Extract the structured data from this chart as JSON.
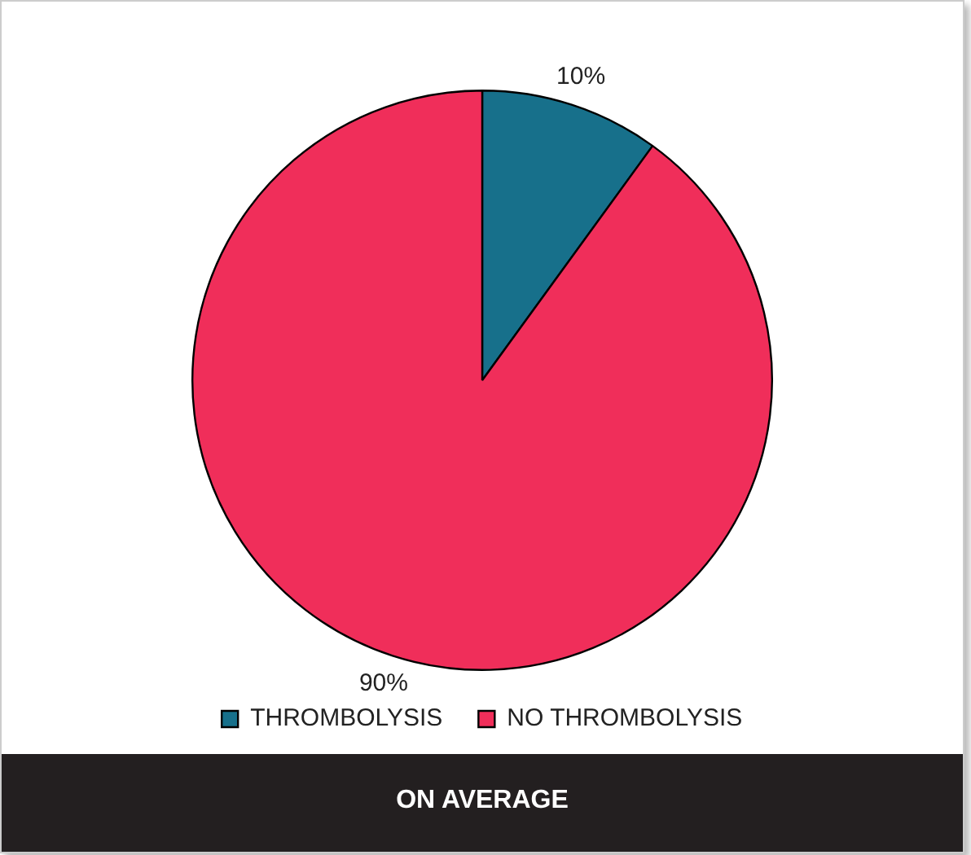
{
  "chart_data": {
    "type": "pie",
    "categories": [
      "THROMBOLYSIS",
      "NO THROMBOLYSIS"
    ],
    "values": [
      10,
      90
    ],
    "colors": [
      "#17708b",
      "#f02e5a"
    ],
    "value_labels": [
      "10%",
      "90%"
    ],
    "legend": "bottom",
    "annotations": [
      "ON AVERAGE"
    ]
  }
}
